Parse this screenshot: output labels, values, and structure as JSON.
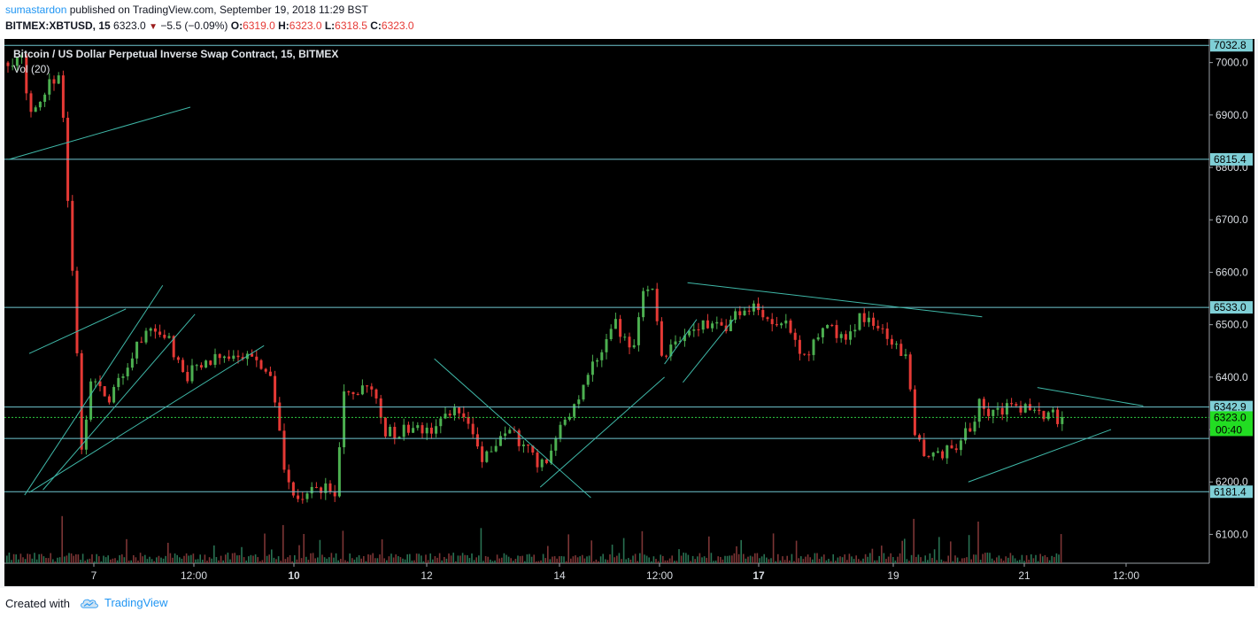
{
  "header": {
    "author": "sumastardon",
    "published_text": "published on TradingView.com, September 19, 2018 11:29 BST",
    "symbol": "BITMEX:XBTUSD, 15",
    "last": "6323.0",
    "change": "−5.5 (−0.09%)",
    "o_label": "O:",
    "o_value": "6319.0",
    "h_label": "H:",
    "h_value": "6323.0",
    "l_label": "L:",
    "l_value": "6318.5",
    "c_label": "C:",
    "c_value": "6323.0"
  },
  "legend": {
    "title": "Bitcoin / US Dollar Perpetual Inverse Swap Contract, 15, BITMEX",
    "indicator": "Vol (20)"
  },
  "footer": {
    "created_with": "Created with",
    "brand": "TradingView"
  },
  "colors": {
    "background": "#000000",
    "up": "#4caf50",
    "down": "#e53935",
    "drawing": "#3fb8a8",
    "level_line": "#6fc5cf",
    "price_label_bg": "#7fcfd6",
    "last_price_bg": "#22dd22",
    "last_price_line": "#2ecc40",
    "grid": "#3a3a3a"
  },
  "chart_data": {
    "type": "candlestick",
    "timeframe": "15",
    "y_range": [
      6045,
      7045
    ],
    "y_ticks": [
      "7000.0",
      "6900.0",
      "6800.0",
      "6700.0",
      "6600.0",
      "6500.0",
      "6400.0",
      "6300.0",
      "6200.0",
      "6100.0"
    ],
    "y_tick_values": [
      7000,
      6900,
      6800,
      6700,
      6600,
      6500,
      6400,
      6300,
      6200,
      6100
    ],
    "x_ticks": [
      "7",
      "12:00",
      "10",
      "12",
      "14",
      "12:00",
      "17",
      "19",
      "21",
      "12:00"
    ],
    "x_tick_bold": [
      false,
      false,
      true,
      false,
      false,
      false,
      true,
      false,
      false,
      false
    ],
    "levels": [
      {
        "label": "7032.8",
        "value": 7032.8
      },
      {
        "label": "6815.4",
        "value": 6815.4
      },
      {
        "label": "6533.0",
        "value": 6533.0
      },
      {
        "label": "6342.9",
        "value": 6342.9
      },
      {
        "label": "6181.4",
        "value": 6181.4
      },
      {
        "label": "",
        "value": 6283
      }
    ],
    "last_price": {
      "label": "6323.0",
      "value": 6323.0,
      "countdown": "00:40"
    },
    "series_path": [
      [
        0,
        7000
      ],
      [
        3,
        7005
      ],
      [
        5,
        6900
      ],
      [
        9,
        6960
      ],
      [
        11,
        6980
      ],
      [
        12,
        6890
      ],
      [
        15,
        6440
      ],
      [
        16,
        6260
      ],
      [
        18,
        6390
      ],
      [
        22,
        6360
      ],
      [
        27,
        6440
      ],
      [
        31,
        6500
      ],
      [
        35,
        6470
      ],
      [
        38,
        6400
      ],
      [
        42,
        6420
      ],
      [
        46,
        6440
      ],
      [
        50,
        6450
      ],
      [
        53,
        6440
      ],
      [
        56,
        6420
      ],
      [
        58,
        6360
      ],
      [
        60,
        6215
      ],
      [
        62,
        6170
      ],
      [
        67,
        6185
      ],
      [
        71,
        6185
      ],
      [
        73,
        6370
      ],
      [
        76,
        6375
      ],
      [
        79,
        6380
      ],
      [
        82,
        6295
      ],
      [
        85,
        6290
      ],
      [
        88,
        6315
      ],
      [
        91,
        6295
      ],
      [
        94,
        6310
      ],
      [
        97,
        6345
      ],
      [
        100,
        6320
      ],
      [
        103,
        6250
      ],
      [
        106,
        6270
      ],
      [
        109,
        6295
      ],
      [
        112,
        6270
      ],
      [
        115,
        6240
      ],
      [
        117,
        6240
      ],
      [
        120,
        6300
      ],
      [
        124,
        6370
      ],
      [
        128,
        6440
      ],
      [
        132,
        6500
      ],
      [
        136,
        6450
      ],
      [
        138,
        6570
      ],
      [
        140,
        6560
      ],
      [
        142,
        6440
      ],
      [
        145,
        6460
      ],
      [
        148,
        6490
      ],
      [
        151,
        6500
      ],
      [
        155,
        6490
      ],
      [
        158,
        6520
      ],
      [
        162,
        6540
      ],
      [
        166,
        6510
      ],
      [
        170,
        6490
      ],
      [
        173,
        6440
      ],
      [
        176,
        6480
      ],
      [
        179,
        6490
      ],
      [
        182,
        6480
      ],
      [
        185,
        6510
      ],
      [
        188,
        6500
      ],
      [
        191,
        6480
      ],
      [
        193,
        6460
      ],
      [
        195,
        6440
      ],
      [
        197,
        6300
      ],
      [
        199,
        6260
      ],
      [
        202,
        6250
      ],
      [
        206,
        6270
      ],
      [
        209,
        6300
      ],
      [
        211,
        6350
      ],
      [
        214,
        6330
      ],
      [
        218,
        6345
      ],
      [
        222,
        6340
      ],
      [
        226,
        6330
      ],
      [
        229,
        6320
      ]
    ],
    "volume_spikes": [
      {
        "x": 12,
        "v": 7
      },
      {
        "x": 60,
        "v": 6
      },
      {
        "x": 73,
        "v": 5
      },
      {
        "x": 103,
        "v": 5
      },
      {
        "x": 138,
        "v": 5
      },
      {
        "x": 197,
        "v": 7
      },
      {
        "x": 211,
        "v": 6
      },
      {
        "x": 229,
        "v": 4
      }
    ]
  },
  "drawings": [
    {
      "x1": 0.5,
      "y1": 6815,
      "x2": 40,
      "y2": 6915
    },
    {
      "x1": 5,
      "y1": 6445,
      "x2": 26,
      "y2": 6530
    },
    {
      "x1": 4,
      "y1": 6175,
      "x2": 34,
      "y2": 6575
    },
    {
      "x1": 8,
      "y1": 6185,
      "x2": 41,
      "y2": 6520
    },
    {
      "x1": 5,
      "y1": 6180,
      "x2": 56,
      "y2": 6460
    },
    {
      "x1": 93,
      "y1": 6435,
      "x2": 127,
      "y2": 6170
    },
    {
      "x1": 116,
      "y1": 6190,
      "x2": 143,
      "y2": 6400
    },
    {
      "x1": 143,
      "y1": 6425,
      "x2": 150,
      "y2": 6510
    },
    {
      "x1": 147,
      "y1": 6390,
      "x2": 158,
      "y2": 6510
    },
    {
      "x1": 148,
      "y1": 6580,
      "x2": 212,
      "y2": 6515
    },
    {
      "x1": 209,
      "y1": 6200,
      "x2": 240,
      "y2": 6300
    },
    {
      "x1": 224,
      "y1": 6380,
      "x2": 247,
      "y2": 6345
    }
  ]
}
